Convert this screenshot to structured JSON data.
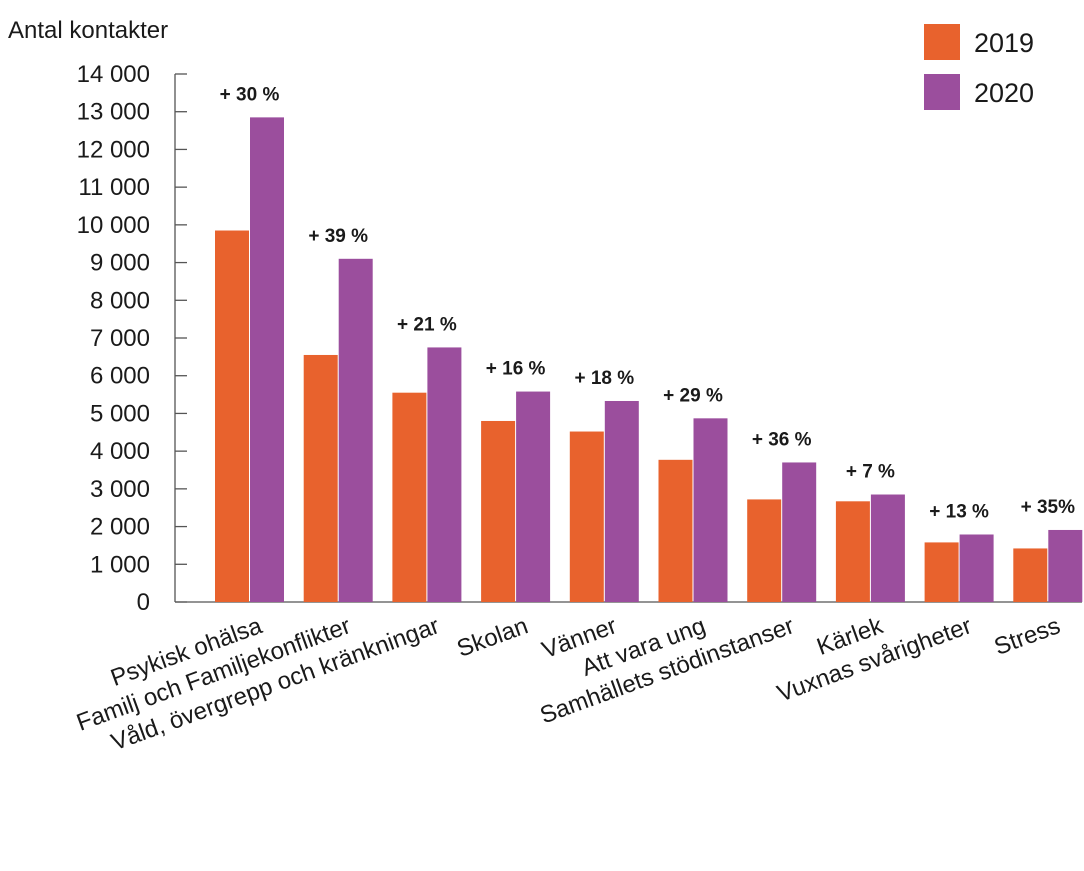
{
  "chart_data": {
    "type": "bar",
    "title": "",
    "ylabel": "Antal kontakter",
    "xlabel": "",
    "ylim": [
      0,
      14000
    ],
    "yticks": [
      0,
      1000,
      2000,
      3000,
      4000,
      5000,
      6000,
      7000,
      8000,
      9000,
      10000,
      11000,
      12000,
      13000,
      14000
    ],
    "ytick_labels": [
      "0",
      "1 000",
      "2 000",
      "3 000",
      "4 000",
      "5 000",
      "6 000",
      "7 000",
      "8 000",
      "9 000",
      "10 000",
      "11 000",
      "12 000",
      "13 000",
      "14 000"
    ],
    "categories": [
      "Psykisk ohälsa",
      "Familj och Familjekonflikter",
      "Våld, övergrepp och kränkningar",
      "Skolan",
      "Vänner",
      "Att vara ung",
      "Samhällets stödinstanser",
      "Kärlek",
      "Vuxnas svårigheter",
      "Stress"
    ],
    "series": [
      {
        "name": "2019",
        "color": "#e8622d",
        "values": [
          9850,
          6550,
          5550,
          4800,
          4520,
          3770,
          2720,
          2670,
          1580,
          1420
        ]
      },
      {
        "name": "2020",
        "color": "#9b4e9d",
        "values": [
          12850,
          9100,
          6750,
          5580,
          5330,
          4870,
          3700,
          2850,
          1790,
          1910
        ]
      }
    ],
    "annotations": [
      "+ 30 %",
      "+ 39 %",
      "+ 21 %",
      "+ 16 %",
      "+ 18 %",
      "+ 29 %",
      "+ 36 %",
      "+ 7 %",
      "+ 13 %",
      "+ 35%"
    ],
    "grid": false,
    "legend_position": "top-right"
  }
}
